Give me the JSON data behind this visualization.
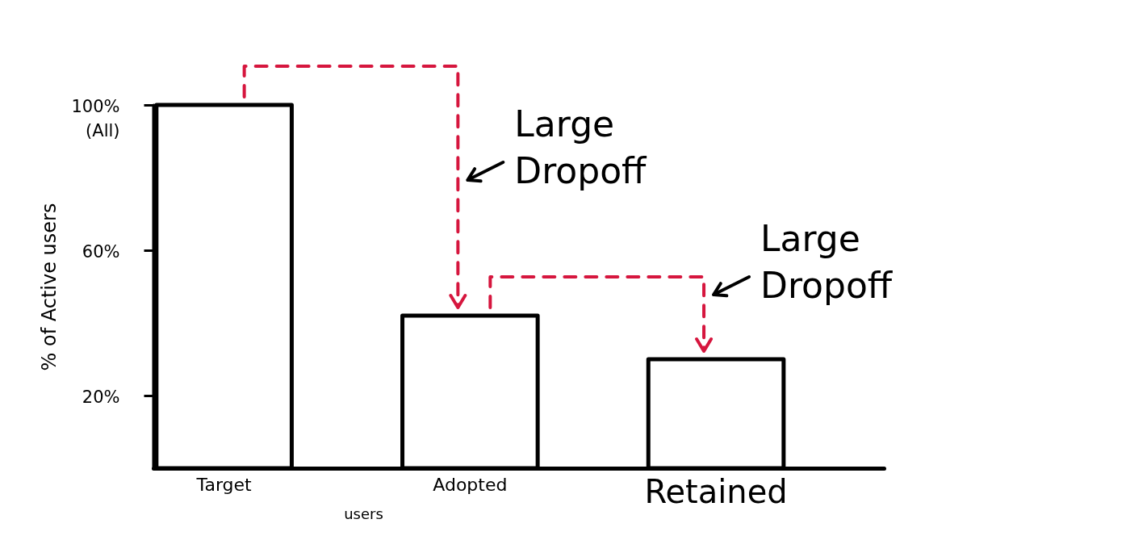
{
  "chart_data": {
    "type": "bar",
    "xlabel": "users",
    "ylabel": "% of Active users",
    "categories": [
      "Target",
      "Adopted",
      "Retained"
    ],
    "values": [
      100,
      42,
      30
    ],
    "color": "#ffffff",
    "ylim": [
      0,
      100
    ],
    "yticks": [
      {
        "value": 20,
        "label": "20%"
      },
      {
        "value": 60,
        "label": "60%"
      },
      {
        "value": 100,
        "label": "100% (All)"
      }
    ],
    "annotations": [
      "Large Dropoff",
      "Large Dropoff"
    ],
    "grid": false
  }
}
